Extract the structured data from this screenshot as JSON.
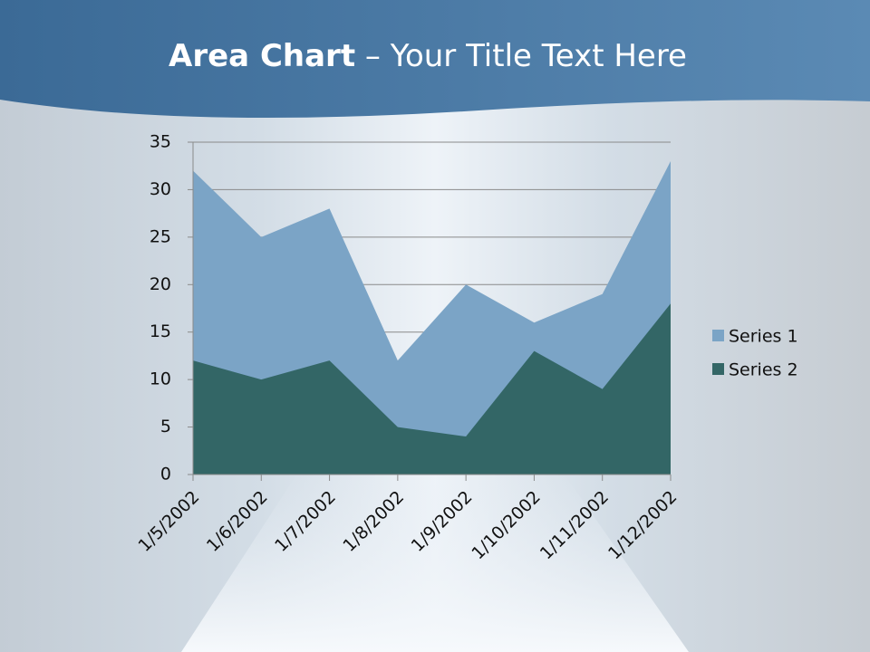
{
  "chart_data": {
    "type": "area",
    "title": [
      "Area Chart",
      "– Your Title Text Here"
    ],
    "categories": [
      "1/5/2002",
      "1/6/2002",
      "1/7/2002",
      "1/8/2002",
      "1/9/2002",
      "1/10/2002",
      "1/11/2002",
      "1/12/2002"
    ],
    "series": [
      {
        "name": "Series 1",
        "color": "#7ba4c6",
        "values": [
          32,
          25,
          28,
          12,
          20,
          16,
          19,
          33
        ]
      },
      {
        "name": "Series 2",
        "color": "#336666",
        "values": [
          12,
          10,
          12,
          5,
          4,
          13,
          9,
          18
        ]
      }
    ],
    "ylim": [
      0,
      35
    ],
    "yticks": [
      0,
      5,
      10,
      15,
      20,
      25,
      30,
      35
    ],
    "grid": true,
    "legend": "right"
  }
}
